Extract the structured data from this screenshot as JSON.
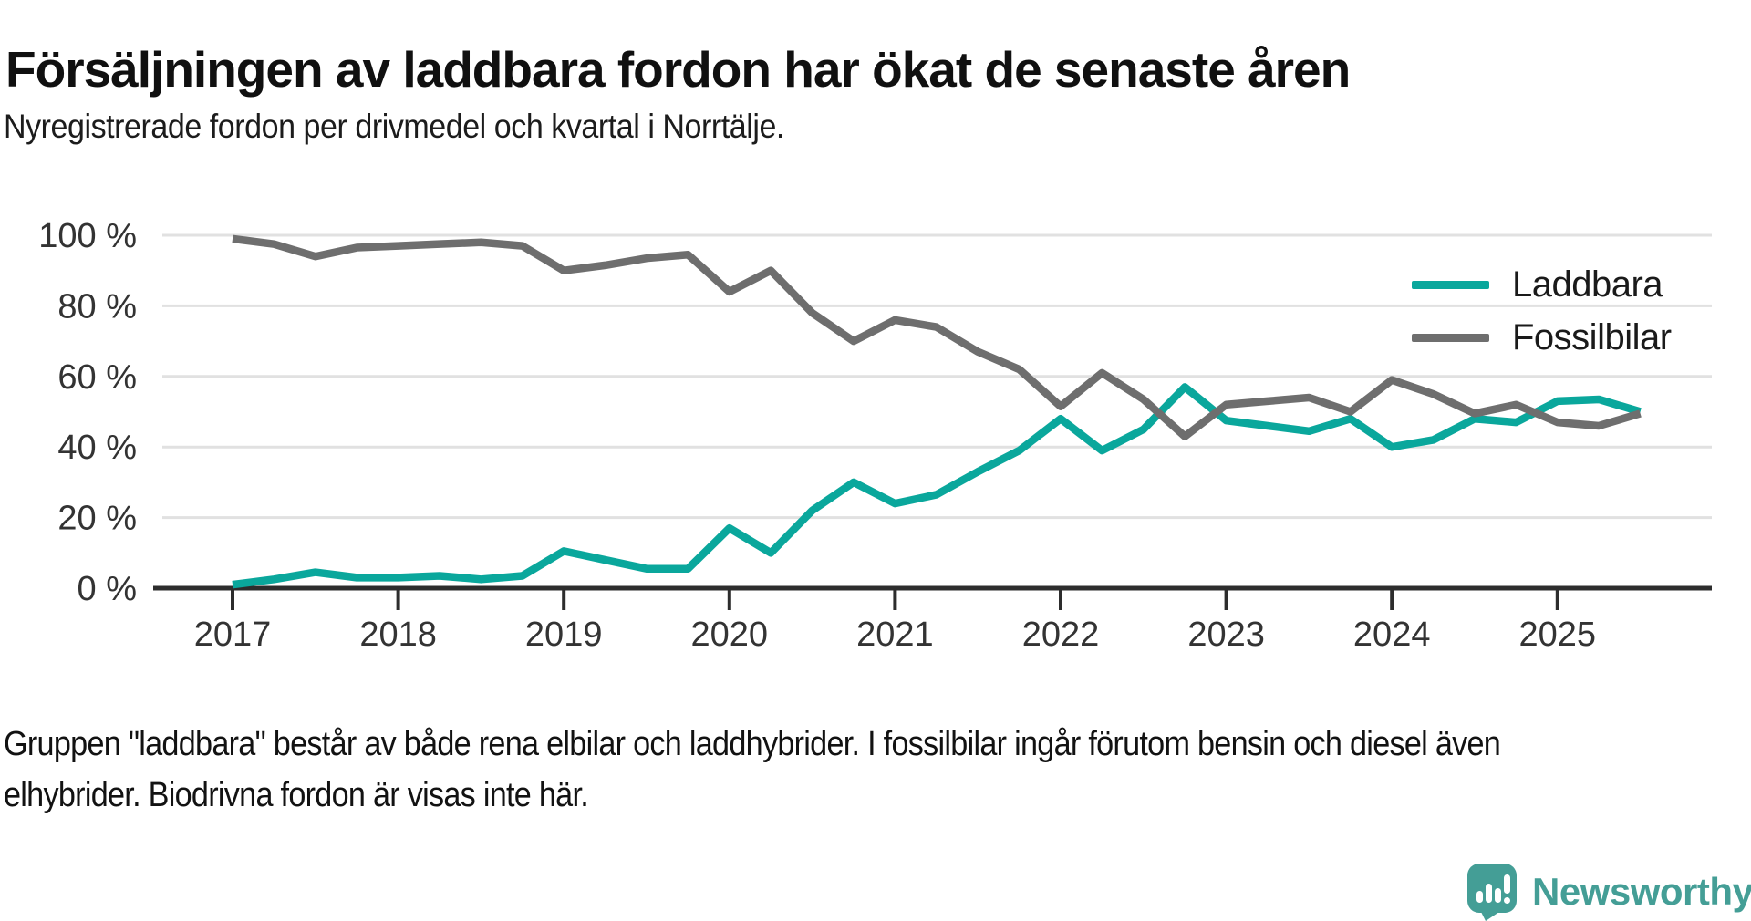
{
  "header": {
    "title": "Försäljningen av laddbara fordon har ökat de senaste åren",
    "subtitle": "Nyregistrerade fordon per drivmedel och kvartal i Norrtälje."
  },
  "chart_data": {
    "type": "line",
    "title": "Försäljningen av laddbara fordon har ökat de senaste åren",
    "subtitle": "Nyregistrerade fordon per drivmedel och kvartal i Norrtälje.",
    "x_unit": "quarter",
    "categories": [
      "2017 Q1",
      "2017 Q2",
      "2017 Q3",
      "2017 Q4",
      "2018 Q1",
      "2018 Q2",
      "2018 Q3",
      "2018 Q4",
      "2019 Q1",
      "2019 Q2",
      "2019 Q3",
      "2019 Q4",
      "2020 Q1",
      "2020 Q2",
      "2020 Q3",
      "2020 Q4",
      "2021 Q1",
      "2021 Q2",
      "2021 Q3",
      "2021 Q4",
      "2022 Q1",
      "2022 Q2",
      "2022 Q3",
      "2022 Q4",
      "2023 Q1",
      "2023 Q2",
      "2023 Q3",
      "2023 Q4",
      "2024 Q1",
      "2024 Q2",
      "2024 Q3",
      "2024 Q4",
      "2025 Q1",
      "2025 Q2",
      "2025 Q3"
    ],
    "series": [
      {
        "name": "Laddbara",
        "color": "#0aa79c",
        "values": [
          1,
          2.5,
          4.5,
          3,
          3,
          3.5,
          2.5,
          3.5,
          10.5,
          8,
          5.5,
          5.5,
          17,
          10,
          22,
          30,
          24,
          26.5,
          33,
          39,
          48,
          39,
          45,
          57,
          47.5,
          46,
          44.5,
          48,
          40,
          42,
          48,
          47,
          53,
          53.5,
          50
        ]
      },
      {
        "name": "Fossilbilar",
        "color": "#6e6e6e",
        "values": [
          99,
          97.5,
          94,
          96.5,
          97,
          97.5,
          98,
          97,
          90,
          91.5,
          93.5,
          94.5,
          84,
          90,
          78,
          70,
          76,
          74,
          67,
          62,
          51.5,
          61,
          53.5,
          43,
          52,
          53,
          54,
          50,
          59,
          55,
          49.5,
          52,
          47,
          46,
          49.5
        ]
      }
    ],
    "ylim": [
      0,
      100
    ],
    "y_ticks": [
      0,
      20,
      40,
      60,
      80,
      100
    ],
    "y_tick_suffix": " %",
    "x_tick_labels": [
      "2017",
      "2018",
      "2019",
      "2020",
      "2021",
      "2022",
      "2023",
      "2024",
      "2025"
    ],
    "grid": "horizontal",
    "legend_position": "top-right"
  },
  "footer": {
    "lines": [
      "Gruppen \"laddbara\" består av både rena elbilar och laddhybrider. I fossilbilar ingår förutom bensin och diesel även",
      "elhybrider. Biodrivna fordon är visas inte här."
    ]
  },
  "branding": {
    "logo_text": "Newsworthy",
    "brand_color": "#449e96"
  }
}
